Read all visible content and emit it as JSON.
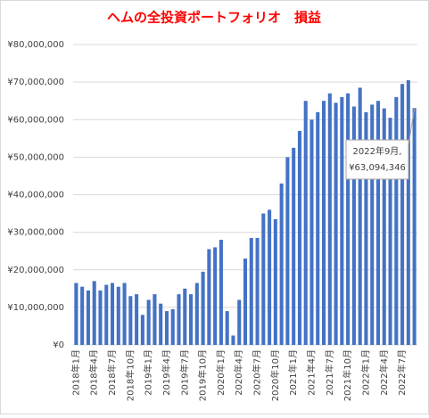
{
  "chart_data": {
    "type": "bar",
    "title": "ヘムの全投資ポートフォリオ　損益",
    "categories": [
      "2018年1月",
      null,
      null,
      "2018年4月",
      null,
      null,
      "2018年7月",
      null,
      null,
      "2018年10月",
      null,
      null,
      "2019年1月",
      null,
      null,
      "2019年4月",
      null,
      null,
      "2019年7月",
      null,
      null,
      "2019年10月",
      null,
      null,
      "2020年1月",
      null,
      null,
      "2020年4月",
      null,
      null,
      "2020年7月",
      null,
      null,
      "2020年10月",
      null,
      null,
      "2021年1月",
      null,
      null,
      "2021年4月",
      null,
      null,
      "2021年7月",
      null,
      null,
      "2021年10月",
      null,
      null,
      "2022年1月",
      null,
      null,
      "2022年4月",
      null,
      null,
      "2022年7月",
      null,
      null
    ],
    "values": [
      16500000,
      15500000,
      14500000,
      17000000,
      14500000,
      16000000,
      16500000,
      15500000,
      16500000,
      13000000,
      13500000,
      8000000,
      12000000,
      13500000,
      11000000,
      9000000,
      9500000,
      13500000,
      15000000,
      13500000,
      16500000,
      19500000,
      25500000,
      26000000,
      28000000,
      9000000,
      2500000,
      12000000,
      23000000,
      28500000,
      28500000,
      35000000,
      36000000,
      33500000,
      43000000,
      50000000,
      52500000,
      57000000,
      65000000,
      60000000,
      62000000,
      65000000,
      67000000,
      64500000,
      66000000,
      67000000,
      63500000,
      68500000,
      62000000,
      64000000,
      65000000,
      63000000,
      60500000,
      66000000,
      69500000,
      70500000,
      63094346
    ],
    "color": "#4472c4",
    "ylim": [
      0,
      80000000
    ],
    "yticks": [
      {
        "value": 0,
        "label": "¥0"
      },
      {
        "value": 10000000,
        "label": "¥10,000,000"
      },
      {
        "value": 20000000,
        "label": "¥20,000,000"
      },
      {
        "value": 30000000,
        "label": "¥30,000,000"
      },
      {
        "value": 40000000,
        "label": "¥40,000,000"
      },
      {
        "value": 50000000,
        "label": "¥50,000,000"
      },
      {
        "value": 60000000,
        "label": "¥60,000,000"
      },
      {
        "value": 70000000,
        "label": "¥70,000,000"
      },
      {
        "value": 80000000,
        "label": "¥80,000,000"
      }
    ],
    "grid": true,
    "annotation": [
      "2022年9月,",
      "¥63,094,346"
    ]
  }
}
